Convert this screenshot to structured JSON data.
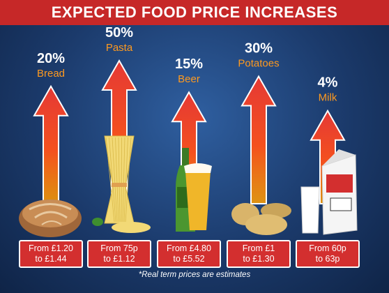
{
  "title": "EXPECTED FOOD PRICE INCREASES",
  "footnote": "*Real term prices are estimates",
  "chart_data": {
    "type": "bar",
    "title": "EXPECTED FOOD PRICE INCREASES",
    "categories": [
      "Bread",
      "Pasta",
      "Beer",
      "Potatoes",
      "Milk"
    ],
    "values": [
      20,
      50,
      15,
      30,
      4
    ],
    "unit": "%",
    "value_labels": [
      "20%",
      "50%",
      "15%",
      "30%",
      "4%"
    ],
    "price_labels": [
      [
        "From £1.20",
        "to £1.44"
      ],
      [
        "From 75p",
        "to £1.12"
      ],
      [
        "From £4.80",
        "to £5.52"
      ],
      [
        "From £1",
        "to £1.30"
      ],
      [
        "From 60p",
        "to 63p"
      ]
    ],
    "icons": [
      "bread-loaf-icon",
      "spaghetti-bundle-icon",
      "beer-bottle-and-glass-icon",
      "potatoes-icon",
      "milk-carton-and-glass-icon"
    ],
    "colors": {
      "banner": "#c62828",
      "arrow_top": "#e53935",
      "arrow_bottom": "#ff9800",
      "label": "#ff9a1f",
      "price_box": "#d32f2f"
    }
  }
}
